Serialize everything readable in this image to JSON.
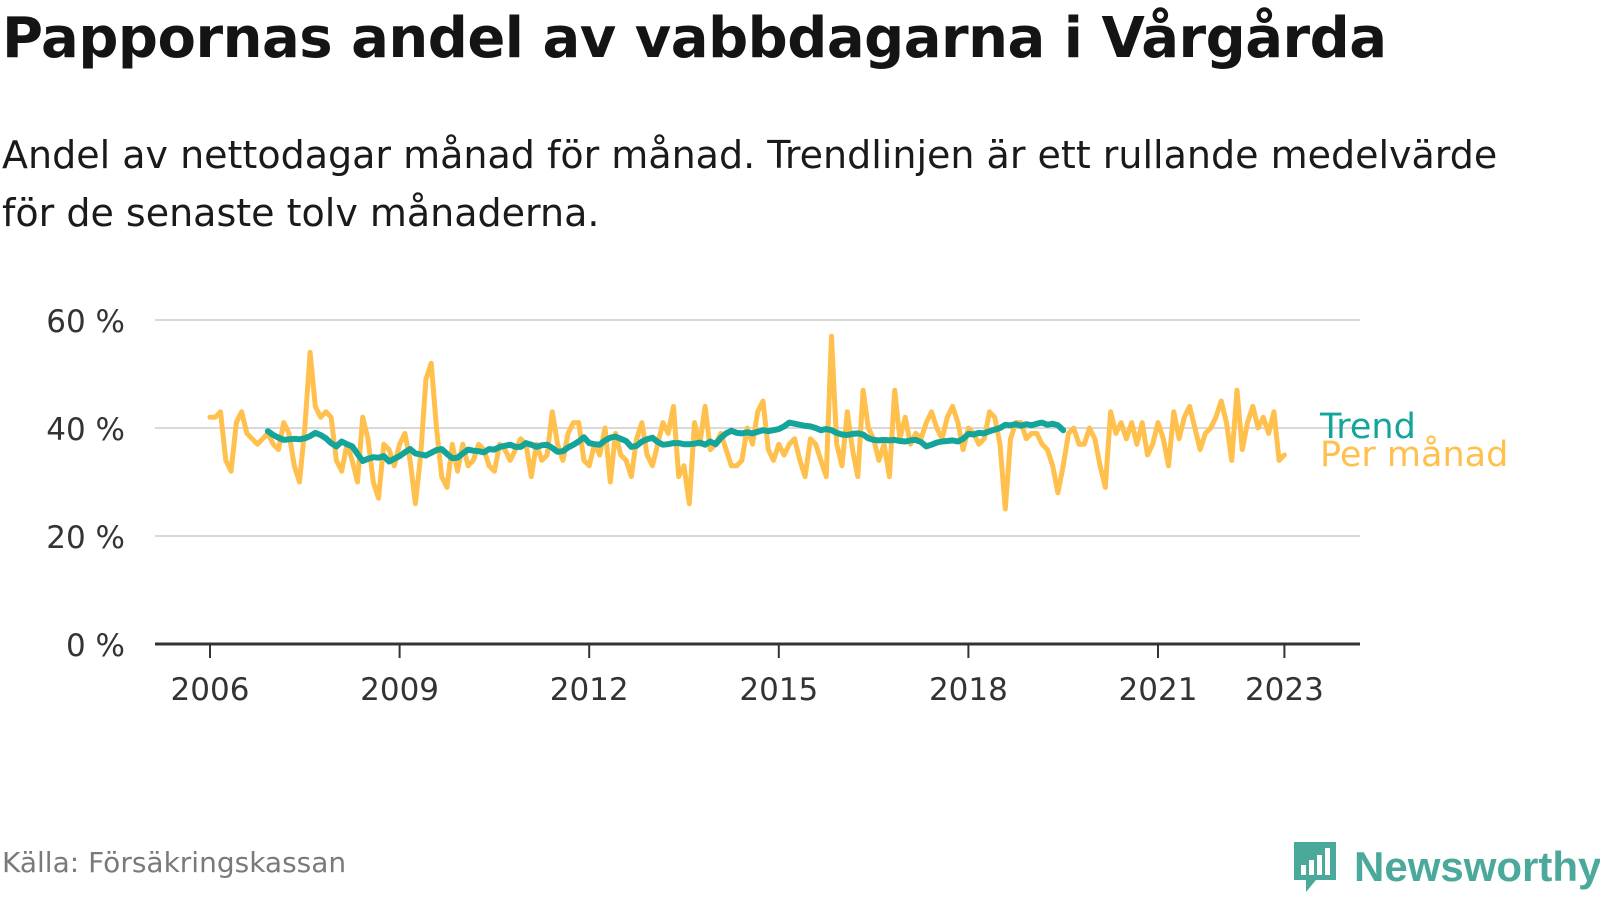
{
  "title": "Pappornas andel av vabbdagarna i Vårgårda",
  "subtitle": "Andel av nettodagar månad för månad. Trendlinjen är ett rullande medelvärde för de senaste tolv månaderna.",
  "source": "Källa: Försäkringskassan",
  "brand": {
    "name": "Newsworthy",
    "icon": "newsworthy-logo-icon",
    "color": "#4aa99a"
  },
  "chart_data": {
    "type": "line",
    "title": "Pappornas andel av vabbdagarna i Vårgårda",
    "xlabel": "",
    "ylabel": "",
    "x_ticks": [
      "2006",
      "2009",
      "2012",
      "2015",
      "2018",
      "2021",
      "2023"
    ],
    "x_tick_values": [
      2006,
      2009,
      2012,
      2015,
      2018,
      2021,
      2023
    ],
    "y_ticks": [
      "0 %",
      "20 %",
      "40 %",
      "60 %"
    ],
    "y_tick_values": [
      0,
      20,
      40,
      60
    ],
    "xlim": [
      2006,
      2023.5
    ],
    "ylim": [
      0,
      60
    ],
    "grid": true,
    "legend": "direct labels at right end of lines",
    "series": [
      {
        "name": "Per månad",
        "color": "#ffc04d",
        "x_start": "2006-01",
        "frequency": "monthly",
        "values": [
          42,
          42,
          43,
          34,
          32,
          41,
          43,
          39,
          38,
          37,
          38,
          39,
          37,
          36,
          41,
          39,
          33,
          30,
          40,
          54,
          44,
          42,
          43,
          42,
          34,
          32,
          37,
          34,
          30,
          42,
          38,
          30,
          27,
          37,
          36,
          33,
          37,
          39,
          34,
          26,
          35,
          49,
          52,
          40,
          31,
          29,
          37,
          32,
          37,
          33,
          34,
          37,
          36,
          33,
          32,
          37,
          36,
          34,
          36,
          38,
          37,
          31,
          37,
          34,
          35,
          43,
          37,
          34,
          39,
          41,
          41,
          34,
          33,
          37,
          35,
          40,
          30,
          39,
          35,
          34,
          31,
          38,
          41,
          35,
          33,
          37,
          41,
          39,
          44,
          31,
          33,
          26,
          41,
          37,
          44,
          36,
          37,
          39,
          36,
          33,
          33,
          34,
          40,
          37,
          43,
          45,
          36,
          34,
          37,
          35,
          37,
          38,
          34,
          31,
          38,
          37,
          34,
          31,
          57,
          37,
          33,
          43,
          36,
          31,
          47,
          40,
          38,
          34,
          37,
          31,
          47,
          38,
          42,
          37,
          39,
          38,
          41,
          43,
          40,
          38,
          42,
          44,
          41,
          36,
          40,
          39,
          37,
          38,
          43,
          42,
          37,
          25,
          38,
          41,
          41,
          38,
          39,
          39,
          37,
          36,
          33,
          28,
          33,
          39,
          40,
          37,
          37,
          40,
          38,
          33,
          29,
          43,
          39,
          41,
          38,
          41,
          37,
          41,
          35,
          37,
          41,
          38,
          33,
          43,
          38,
          42,
          44,
          40,
          36,
          39,
          40,
          42,
          45,
          41,
          34,
          47,
          36,
          41,
          44,
          40,
          42,
          39,
          43,
          34,
          35
        ],
        "data_name": "series-per-manad-line"
      },
      {
        "name": "Trend",
        "color": "#14a49a",
        "x_start": "2006-12",
        "frequency": "monthly",
        "values": [
          39.4,
          38.7,
          38.2,
          37.8,
          37.9,
          38.0,
          37.9,
          38.1,
          38.5,
          39.1,
          38.7,
          38.1,
          37.2,
          36.6,
          37.5,
          37.0,
          36.6,
          35.2,
          33.9,
          34.3,
          34.6,
          34.5,
          34.8,
          33.8,
          34.3,
          34.8,
          35.5,
          36.1,
          35.3,
          35.1,
          34.9,
          35.4,
          35.9,
          36.1,
          35.2,
          34.4,
          34.5,
          35.3,
          36.0,
          35.8,
          35.7,
          35.5,
          36.1,
          36.0,
          36.5,
          36.7,
          36.9,
          36.5,
          36.5,
          37.2,
          36.9,
          36.5,
          36.8,
          36.9,
          36.3,
          35.6,
          35.7,
          36.4,
          36.9,
          37.5,
          38.3,
          37.2,
          37.0,
          36.9,
          37.7,
          38.2,
          38.4,
          38.0,
          37.6,
          36.5,
          36.7,
          37.5,
          37.9,
          38.2,
          37.4,
          36.9,
          37.0,
          37.2,
          37.2,
          37.0,
          37.0,
          37.1,
          37.3,
          36.9,
          37.5,
          37.0,
          38.2,
          39.0,
          39.5,
          39.1,
          39.0,
          39.2,
          39.0,
          39.3,
          39.6,
          39.4,
          39.6,
          39.8,
          40.3,
          41.0,
          40.8,
          40.6,
          40.4,
          40.3,
          40.0,
          39.6,
          39.8,
          39.6,
          39.1,
          38.8,
          38.7,
          38.9,
          39.0,
          38.8,
          38.1,
          37.8,
          37.7,
          37.8,
          37.7,
          37.8,
          37.6,
          37.5,
          37.7,
          37.8,
          37.4,
          36.6,
          36.9,
          37.3,
          37.5,
          37.6,
          37.7,
          37.5,
          38.0,
          38.9,
          38.8,
          39.1,
          39.0,
          39.4,
          39.7,
          40.0,
          40.6,
          40.5,
          40.7,
          40.4,
          40.7,
          40.5,
          40.8,
          41.0,
          40.6,
          40.8,
          40.5,
          39.6
        ],
        "data_name": "series-trend-line"
      }
    ]
  }
}
